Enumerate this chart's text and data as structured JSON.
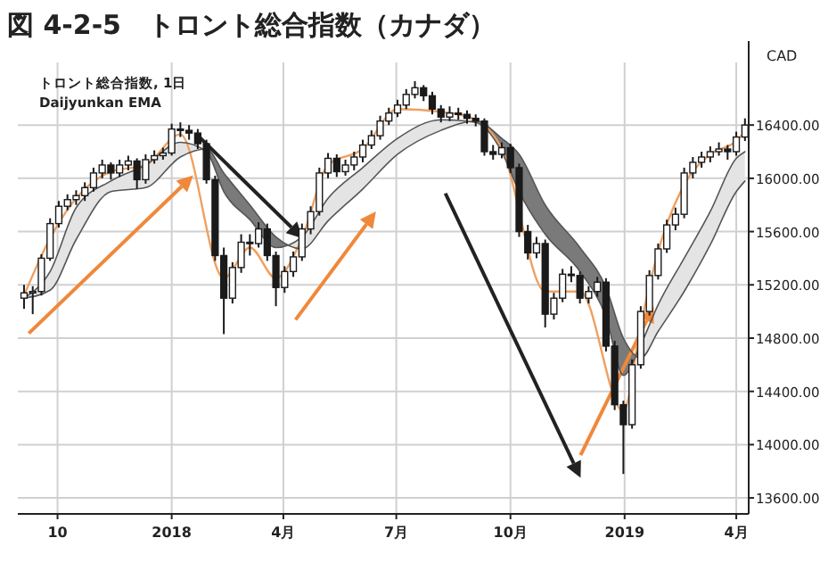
{
  "chart_data": {
    "type": "candlestick",
    "title": "図 4-2-5　トロント総合指数（カナダ）",
    "subtitle": "トロント総合指数, 1日",
    "annotations": [
      "Daijyunkan EMA"
    ],
    "ylabel": "CAD",
    "xlim": [
      "2017-08-30",
      "2019-04-11"
    ],
    "ylim": [
      13480,
      16870
    ],
    "xticks": [
      {
        "value": "2017-10-01",
        "label": "10"
      },
      {
        "value": "2018-01-01",
        "label": "2018"
      },
      {
        "value": "2018-04-01",
        "label": "4月"
      },
      {
        "value": "2018-07-01",
        "label": "7月"
      },
      {
        "value": "2018-10-01",
        "label": "10月"
      },
      {
        "value": "2019-01-01",
        "label": "2019"
      },
      {
        "value": "2019-04-01",
        "label": "4月"
      }
    ],
    "yticks": [
      {
        "value": 13600,
        "label": "13600.00"
      },
      {
        "value": 14000,
        "label": "14000.00"
      },
      {
        "value": 14400,
        "label": "14400.00"
      },
      {
        "value": 14800,
        "label": "14800.00"
      },
      {
        "value": 15200,
        "label": "15200.00"
      },
      {
        "value": 15600,
        "label": "15600.00"
      },
      {
        "value": 16000,
        "label": "16000.00"
      },
      {
        "value": 16400,
        "label": "16400.00"
      }
    ],
    "grid": true,
    "series": [
      {
        "color": "#1a1a1a",
        "x": [
          "2017-09-04",
          "2017-09-11",
          "2017-09-18",
          "2017-09-25",
          "2017-10-02",
          "2017-10-09",
          "2017-10-16",
          "2017-10-23",
          "2017-10-30",
          "2017-11-06",
          "2017-11-13",
          "2017-11-20",
          "2017-11-27",
          "2017-12-04",
          "2017-12-11",
          "2017-12-18",
          "2017-12-25",
          "2018-01-01",
          "2018-01-08",
          "2018-01-15",
          "2018-01-22",
          "2018-01-29",
          "2018-02-05",
          "2018-02-12",
          "2018-02-19",
          "2018-02-26",
          "2018-03-05",
          "2018-03-12",
          "2018-03-19",
          "2018-03-26",
          "2018-04-02",
          "2018-04-09",
          "2018-04-16",
          "2018-04-23",
          "2018-04-30",
          "2018-05-07",
          "2018-05-14",
          "2018-05-21",
          "2018-05-28",
          "2018-06-04",
          "2018-06-11",
          "2018-06-18",
          "2018-06-25",
          "2018-07-02",
          "2018-07-09",
          "2018-07-16",
          "2018-07-23",
          "2018-07-30",
          "2018-08-06",
          "2018-08-13",
          "2018-08-20",
          "2018-08-27",
          "2018-09-03",
          "2018-09-10",
          "2018-09-17",
          "2018-09-24",
          "2018-10-01",
          "2018-10-08",
          "2018-10-15",
          "2018-10-22",
          "2018-10-29",
          "2018-11-05",
          "2018-11-12",
          "2018-11-19",
          "2018-11-26",
          "2018-12-03",
          "2018-12-10",
          "2018-12-17",
          "2018-12-24",
          "2018-12-31",
          "2019-01-07",
          "2019-01-14",
          "2019-01-21",
          "2019-01-28",
          "2019-02-04",
          "2019-02-11",
          "2019-02-18",
          "2019-02-25",
          "2019-03-04",
          "2019-03-11",
          "2019-03-18",
          "2019-03-25",
          "2019-04-01",
          "2019-04-08"
        ],
        "ohlc": [
          [
            15100,
            15200,
            15020,
            15140
          ],
          [
            15140,
            15190,
            14980,
            15150
          ],
          [
            15150,
            15430,
            15120,
            15400
          ],
          [
            15400,
            15700,
            15380,
            15660
          ],
          [
            15660,
            15830,
            15630,
            15790
          ],
          [
            15790,
            15880,
            15760,
            15840
          ],
          [
            15840,
            15910,
            15800,
            15870
          ],
          [
            15870,
            15970,
            15830,
            15930
          ],
          [
            15930,
            16080,
            15900,
            16040
          ],
          [
            16040,
            16140,
            16000,
            16100
          ],
          [
            16100,
            16120,
            15990,
            16040
          ],
          [
            16040,
            16140,
            16010,
            16100
          ],
          [
            16100,
            16170,
            16060,
            16130
          ],
          [
            16130,
            16150,
            15920,
            15990
          ],
          [
            15990,
            16180,
            15960,
            16140
          ],
          [
            16140,
            16210,
            16110,
            16170
          ],
          [
            16170,
            16230,
            16140,
            16190
          ],
          [
            16190,
            16410,
            16170,
            16370
          ],
          [
            16370,
            16420,
            16310,
            16360
          ],
          [
            16360,
            16400,
            16290,
            16340
          ],
          [
            16340,
            16370,
            16220,
            16260
          ],
          [
            16260,
            16290,
            15960,
            15990
          ],
          [
            15990,
            16020,
            15380,
            15420
          ],
          [
            15420,
            15480,
            14830,
            15100
          ],
          [
            15100,
            15370,
            15060,
            15330
          ],
          [
            15330,
            15580,
            15290,
            15520
          ],
          [
            15520,
            15580,
            15420,
            15510
          ],
          [
            15510,
            15670,
            15480,
            15620
          ],
          [
            15620,
            15660,
            15380,
            15420
          ],
          [
            15420,
            15450,
            15040,
            15180
          ],
          [
            15180,
            15340,
            15140,
            15300
          ],
          [
            15300,
            15450,
            15260,
            15410
          ],
          [
            15410,
            15660,
            15380,
            15620
          ],
          [
            15620,
            15790,
            15580,
            15750
          ],
          [
            15750,
            16080,
            15720,
            16040
          ],
          [
            16040,
            16190,
            16000,
            16150
          ],
          [
            16150,
            16180,
            16010,
            16050
          ],
          [
            16050,
            16140,
            16020,
            16100
          ],
          [
            16100,
            16200,
            16060,
            16160
          ],
          [
            16160,
            16290,
            16120,
            16250
          ],
          [
            16250,
            16360,
            16220,
            16320
          ],
          [
            16320,
            16470,
            16290,
            16430
          ],
          [
            16430,
            16530,
            16400,
            16490
          ],
          [
            16490,
            16590,
            16460,
            16550
          ],
          [
            16550,
            16670,
            16520,
            16630
          ],
          [
            16630,
            16730,
            16600,
            16680
          ],
          [
            16680,
            16700,
            16580,
            16620
          ],
          [
            16620,
            16650,
            16480,
            16520
          ],
          [
            16520,
            16550,
            16420,
            16460
          ],
          [
            16460,
            16540,
            16430,
            16490
          ],
          [
            16490,
            16530,
            16440,
            16480
          ],
          [
            16480,
            16510,
            16410,
            16450
          ],
          [
            16450,
            16480,
            16390,
            16430
          ],
          [
            16430,
            16450,
            16170,
            16200
          ],
          [
            16200,
            16250,
            16140,
            16180
          ],
          [
            16180,
            16270,
            16150,
            16230
          ],
          [
            16230,
            16260,
            16040,
            16080
          ],
          [
            16080,
            16110,
            15560,
            15600
          ],
          [
            15600,
            15650,
            15390,
            15440
          ],
          [
            15440,
            15560,
            15400,
            15510
          ],
          [
            15510,
            15540,
            14880,
            14980
          ],
          [
            14980,
            15140,
            14940,
            15100
          ],
          [
            15100,
            15320,
            15070,
            15280
          ],
          [
            15280,
            15340,
            15220,
            15270
          ],
          [
            15270,
            15300,
            15060,
            15100
          ],
          [
            15100,
            15190,
            15060,
            15150
          ],
          [
            15150,
            15260,
            15110,
            15220
          ],
          [
            15220,
            15250,
            14700,
            14740
          ],
          [
            14740,
            14780,
            14260,
            14300
          ],
          [
            14300,
            14330,
            13780,
            14150
          ],
          [
            14150,
            14640,
            14120,
            14600
          ],
          [
            14600,
            15040,
            14570,
            15000
          ],
          [
            15000,
            15310,
            14970,
            15270
          ],
          [
            15270,
            15510,
            15240,
            15470
          ],
          [
            15470,
            15690,
            15440,
            15650
          ],
          [
            15650,
            15780,
            15610,
            15730
          ],
          [
            15730,
            16080,
            15700,
            16040
          ],
          [
            16040,
            16160,
            16000,
            16120
          ],
          [
            16120,
            16200,
            16080,
            16160
          ],
          [
            16160,
            16240,
            16120,
            16200
          ],
          [
            16200,
            16270,
            16170,
            16220
          ],
          [
            16220,
            16250,
            16140,
            16200
          ],
          [
            16200,
            16350,
            16170,
            16310
          ],
          [
            16310,
            16450,
            16280,
            16400
          ]
        ]
      },
      {
        "type": "line",
        "color": "#f0a060",
        "x": [
          "2017-09-04",
          "2017-09-25",
          "2017-10-16",
          "2017-11-13",
          "2017-12-11",
          "2018-01-08",
          "2018-01-29",
          "2018-02-12",
          "2018-03-05",
          "2018-03-26",
          "2018-04-16",
          "2018-05-07",
          "2018-06-04",
          "2018-07-02",
          "2018-08-06",
          "2018-09-03",
          "2018-09-24",
          "2018-10-08",
          "2018-10-29",
          "2018-11-26",
          "2018-12-17",
          "2018-12-31",
          "2019-01-14",
          "2019-01-28",
          "2019-02-18",
          "2019-03-11",
          "2019-04-01",
          "2019-04-08"
        ],
        "values": [
          15120,
          15550,
          15850,
          16050,
          16100,
          16330,
          null,
          15250,
          15480,
          15250,
          15550,
          16100,
          16220,
          16520,
          16500,
          16440,
          16220,
          null,
          15150,
          15150,
          null,
          14250,
          14900,
          15450,
          15950,
          16180,
          16280,
          16350
        ]
      },
      {
        "type": "line",
        "color": "#555555",
        "x": [
          "2017-09-04",
          "2017-09-25",
          "2017-10-16",
          "2017-11-13",
          "2017-12-11",
          "2018-01-08",
          "2018-01-29",
          "2018-02-12",
          "2018-03-05",
          "2018-03-26",
          "2018-04-16",
          "2018-05-07",
          "2018-06-04",
          "2018-07-02",
          "2018-08-06",
          "2018-09-03",
          "2018-09-24",
          "2018-10-08",
          "2018-10-29",
          "2018-11-26",
          "2018-12-17",
          "2018-12-31",
          "2019-01-14",
          "2019-01-28",
          "2019-02-18",
          "2019-03-11",
          "2019-04-01",
          "2019-04-08"
        ],
        "values": [
          15100,
          15300,
          15780,
          15980,
          16100,
          16270,
          16200,
          15900,
          15690,
          15480,
          15560,
          15850,
          16080,
          16300,
          16440,
          16420,
          16200,
          15900,
          15580,
          15300,
          14960,
          14520,
          14750,
          15050,
          15400,
          15750,
          16150,
          16200
        ]
      },
      {
        "type": "line",
        "color": "#555555",
        "x": [
          "2017-09-04",
          "2017-09-25",
          "2017-10-16",
          "2017-11-13",
          "2017-12-11",
          "2018-01-08",
          "2018-01-29",
          "2018-02-12",
          "2018-03-05",
          "2018-03-26",
          "2018-04-16",
          "2018-05-07",
          "2018-06-04",
          "2018-07-02",
          "2018-08-06",
          "2018-09-03",
          "2018-09-24",
          "2018-10-08",
          "2018-10-29",
          "2018-11-26",
          "2018-12-17",
          "2018-12-31",
          "2019-01-14",
          "2019-01-28",
          "2019-02-18",
          "2019-03-11",
          "2019-04-01",
          "2019-04-08"
        ],
        "values": [
          15100,
          15160,
          15540,
          15900,
          15930,
          16160,
          16220,
          16040,
          15800,
          15560,
          15470,
          15680,
          15920,
          16180,
          16360,
          16430,
          16300,
          16180,
          15800,
          15480,
          15180,
          14800,
          14650,
          14850,
          15150,
          15500,
          15900,
          15980
        ]
      }
    ]
  }
}
